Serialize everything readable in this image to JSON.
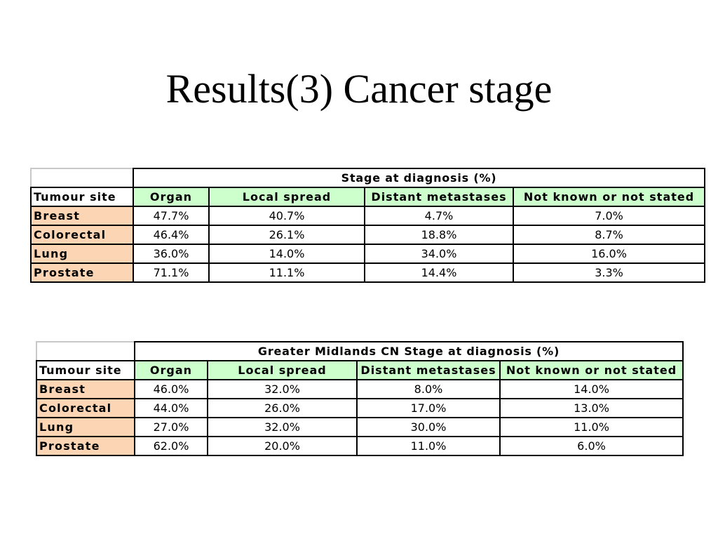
{
  "title": "Results(3) Cancer stage",
  "tables": [
    {
      "group_header": "Stage at diagnosis (%)",
      "site_header": "Tumour site",
      "columns": [
        "Organ",
        "Local spread",
        "Distant metastases",
        "Not known or not stated"
      ],
      "rows": [
        {
          "site": "Breast",
          "values": [
            "47.7%",
            "40.7%",
            "4.7%",
            "7.0%"
          ]
        },
        {
          "site": "Colorectal",
          "values": [
            "46.4%",
            "26.1%",
            "18.8%",
            "8.7%"
          ]
        },
        {
          "site": "Lung",
          "values": [
            "36.0%",
            "14.0%",
            "34.0%",
            "16.0%"
          ]
        },
        {
          "site": "Prostate",
          "values": [
            "71.1%",
            "11.1%",
            "14.4%",
            "3.3%"
          ]
        }
      ]
    },
    {
      "group_header": "Greater Midlands CN Stage at diagnosis (%)",
      "site_header": "Tumour site",
      "columns": [
        "Organ",
        "Local spread",
        "Distant metastases",
        "Not known or not stated"
      ],
      "rows": [
        {
          "site": "Breast",
          "values": [
            "46.0%",
            "32.0%",
            "8.0%",
            "14.0%"
          ]
        },
        {
          "site": "Colorectal",
          "values": [
            "44.0%",
            "26.0%",
            "17.0%",
            "13.0%"
          ]
        },
        {
          "site": "Lung",
          "values": [
            "27.0%",
            "32.0%",
            "30.0%",
            "11.0%"
          ]
        },
        {
          "site": "Prostate",
          "values": [
            "62.0%",
            "20.0%",
            "11.0%",
            "6.0%"
          ]
        }
      ]
    }
  ],
  "colors": {
    "column_header_fill": "#ccffcc",
    "row_label_fill": "#fcd5b4"
  }
}
